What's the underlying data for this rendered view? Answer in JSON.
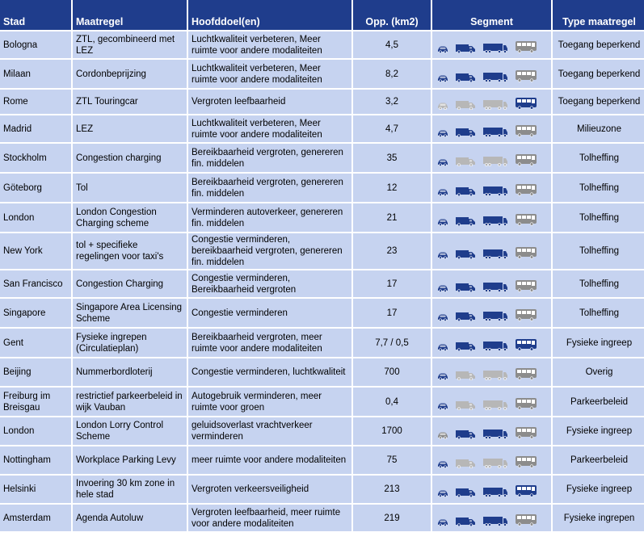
{
  "headers": {
    "stad": "Stad",
    "maatregel": "Maatregel",
    "hoofddoel": "Hoofddoel(en)",
    "opp": "Opp. (km2)",
    "segment": "Segment",
    "type": "Type maatregel"
  },
  "colors": {
    "active": "#1f3d8c",
    "inactive": "#b7b7b7",
    "bus_inactive": "#8c8c8c"
  },
  "vehicle_icons": [
    "car-icon",
    "van-icon",
    "truck-icon",
    "bus-icon"
  ],
  "rows": [
    {
      "stad": "Bologna",
      "maatregel": "ZTL, gecombineerd met LEZ",
      "doel": "Luchtkwaliteit verbeteren, Meer ruimte voor andere modaliteiten",
      "opp": "4,5",
      "segment": [
        "active",
        "active",
        "active",
        "grey"
      ],
      "type": "Toegang beperkend"
    },
    {
      "stad": "Milaan",
      "maatregel": "Cordonbeprijzing",
      "doel": "Luchtkwaliteit verbeteren, Meer ruimte voor andere modaliteiten",
      "opp": "8,2",
      "segment": [
        "active",
        "active",
        "active",
        "grey"
      ],
      "type": "Toegang beperkend"
    },
    {
      "stad": "Rome",
      "maatregel": "ZTL Touringcar",
      "doel": "Vergroten leefbaarheid",
      "opp": "3,2",
      "segment": [
        "light",
        "light",
        "light",
        "active"
      ],
      "type": "Toegang beperkend"
    },
    {
      "stad": "Madrid",
      "maatregel": "LEZ",
      "doel": "Luchtkwaliteit verbeteren, Meer ruimte voor andere modaliteiten",
      "opp": "4,7",
      "segment": [
        "active",
        "active",
        "active",
        "grey"
      ],
      "type": "Milieuzone"
    },
    {
      "stad": "Stockholm",
      "maatregel": "Congestion charging",
      "doel": "Bereikbaarheid vergroten, genereren fin. middelen",
      "opp": "35",
      "segment": [
        "active",
        "light",
        "light",
        "grey"
      ],
      "type": "Tolheffing"
    },
    {
      "stad": "Göteborg",
      "maatregel": "Tol",
      "doel": "Bereikbaarheid vergroten, genereren fin. middelen",
      "opp": "12",
      "segment": [
        "active",
        "active",
        "active",
        "grey"
      ],
      "type": "Tolheffing"
    },
    {
      "stad": "London",
      "maatregel": "London Congestion Charging scheme",
      "doel": "Verminderen autoverkeer, genereren fin. middelen",
      "opp": "21",
      "segment": [
        "active",
        "active",
        "active",
        "grey"
      ],
      "type": "Tolheffing"
    },
    {
      "stad": "New York",
      "maatregel": "tol + specifieke regelingen voor taxi's",
      "doel": "Congestie verminderen, bereikbaarheid vergroten, genereren fin. middelen",
      "opp": "23",
      "segment": [
        "active",
        "active",
        "active",
        "grey"
      ],
      "type": "Tolheffing"
    },
    {
      "stad": "San Francisco",
      "maatregel": "Congestion Charging",
      "doel": "Congestie verminderen, Bereikbaarheid vergroten",
      "opp": "17",
      "segment": [
        "active",
        "active",
        "active",
        "grey"
      ],
      "type": "Tolheffing"
    },
    {
      "stad": "Singapore",
      "maatregel": "Singapore Area Licensing Scheme",
      "doel": "Congestie verminderen",
      "opp": "17",
      "segment": [
        "active",
        "active",
        "active",
        "grey"
      ],
      "type": "Tolheffing"
    },
    {
      "stad": "Gent",
      "maatregel": "Fysieke ingrepen (Circulatieplan)",
      "doel": "Bereikbaarheid vergroten, meer ruimte voor andere modaliteiten",
      "opp": "7,7 / 0,5",
      "segment": [
        "active",
        "active",
        "active",
        "active"
      ],
      "type": "Fysieke ingreep"
    },
    {
      "stad": "Beijing",
      "maatregel": "Nummerbordloterij",
      "doel": "Congestie verminderen, luchtkwaliteit",
      "opp": "700",
      "segment": [
        "active",
        "light",
        "light",
        "grey"
      ],
      "type": "Overig"
    },
    {
      "stad": "Freiburg im Breisgau",
      "maatregel": "restrictief parkeerbeleid in wijk Vauban",
      "doel": "Autogebruik verminderen, meer ruimte voor groen",
      "opp": "0,4",
      "segment": [
        "active",
        "light",
        "light",
        "grey"
      ],
      "type": "Parkeerbeleid"
    },
    {
      "stad": "London",
      "maatregel": "London Lorry Control Scheme",
      "doel": "geluidsoverlast vrachtverkeer verminderen",
      "opp": "1700",
      "segment": [
        "grey",
        "active",
        "active",
        "grey"
      ],
      "type": "Fysieke ingreep"
    },
    {
      "stad": "Nottingham",
      "maatregel": "Workplace Parking Levy",
      "doel": "meer ruimte voor andere modaliteiten",
      "opp": "75",
      "segment": [
        "active",
        "light",
        "light",
        "grey"
      ],
      "type": "Parkeerbeleid"
    },
    {
      "stad": "Helsinki",
      "maatregel": "Invoering 30 km zone in hele stad",
      "doel": "Vergroten verkeersveiligheid",
      "opp": "213",
      "segment": [
        "active",
        "active",
        "active",
        "active"
      ],
      "type": "Fysieke ingreep"
    },
    {
      "stad": "Amsterdam",
      "maatregel": "Agenda Autoluw",
      "doel": "Vergroten leefbaarheid, meer ruimte voor andere modaliteiten",
      "opp": "219",
      "segment": [
        "active",
        "active",
        "active",
        "grey"
      ],
      "type": "Fysieke ingrepen"
    }
  ]
}
